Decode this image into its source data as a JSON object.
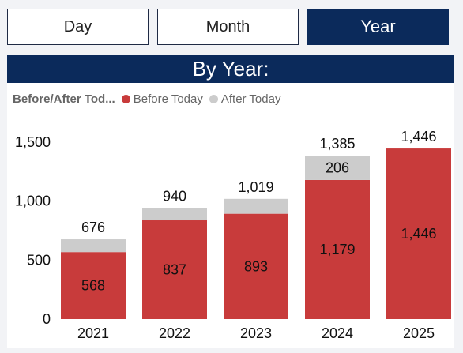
{
  "tabs": [
    {
      "label": "Day",
      "active": false
    },
    {
      "label": "Month",
      "active": false
    },
    {
      "label": "Year",
      "active": true
    }
  ],
  "banner": "By Year:",
  "colors": {
    "primary": "#0b2a5b",
    "before": "#c83b3b",
    "after": "#cccccc"
  },
  "chart_data": {
    "type": "bar",
    "stacked": true,
    "legend_title": "Before/After Tod...",
    "legend_position": "top-left",
    "categories": [
      "2021",
      "2022",
      "2023",
      "2024",
      "2025"
    ],
    "series": [
      {
        "name": "Before Today",
        "values": [
          568,
          837,
          893,
          1179,
          1446
        ],
        "color": "#c83b3b"
      },
      {
        "name": "After Today",
        "values": [
          108,
          103,
          126,
          206,
          0
        ],
        "color": "#cccccc"
      }
    ],
    "segment_labels": {
      "Before Today": [
        "568",
        "837",
        "893",
        "1,179",
        "1,446"
      ],
      "After Today": [
        "",
        "",
        "",
        "206",
        ""
      ]
    },
    "totals": [
      676,
      940,
      1019,
      1385,
      1446
    ],
    "total_labels": [
      "676",
      "940",
      "1,019",
      "1,385",
      "1,446"
    ],
    "y_ticks": [
      0,
      500,
      1000,
      1500
    ],
    "y_tick_labels": [
      "0",
      "500",
      "1,000",
      "1,500"
    ],
    "ylim": [
      0,
      1500
    ],
    "grid": false,
    "title": "",
    "xlabel": "",
    "ylabel": ""
  }
}
